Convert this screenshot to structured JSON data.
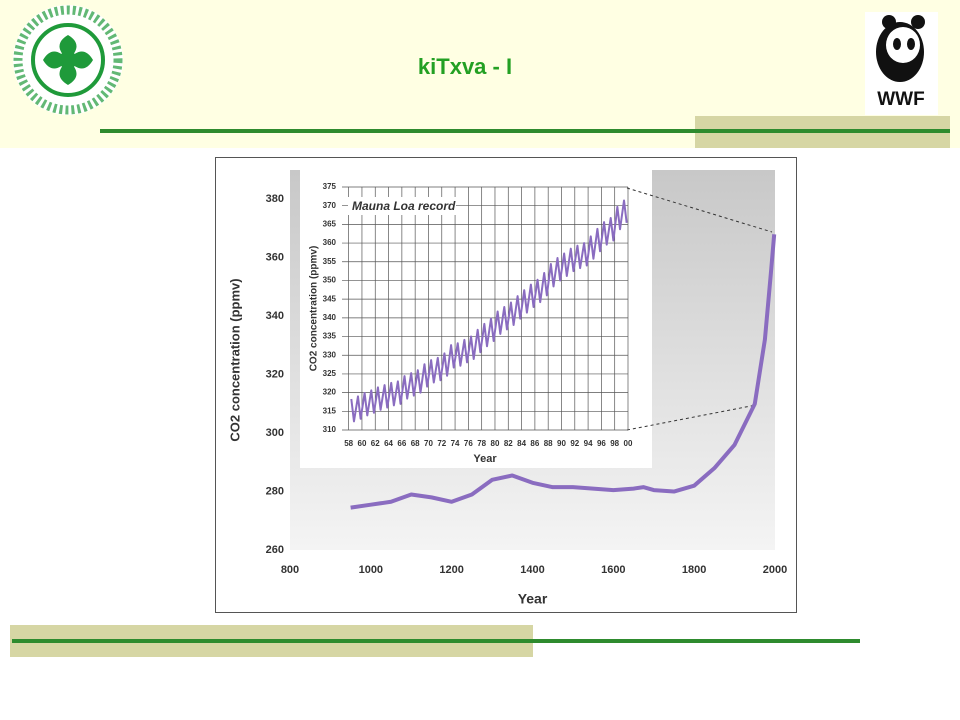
{
  "header": {
    "title": "kiTxva - I",
    "logo_text": "WWF"
  },
  "chart_data": [
    {
      "type": "line",
      "x_label": "Year",
      "y_label": "CO2 concentration (ppmv)",
      "color": "#8a6cc0",
      "grid": false,
      "xlim": [
        800,
        2000
      ],
      "xticks": [
        800,
        1000,
        1200,
        1400,
        1600,
        1800,
        2000
      ],
      "ylim": [
        260,
        390
      ],
      "yticks": [
        260,
        280,
        300,
        320,
        340,
        360,
        380
      ],
      "x": [
        950,
        1000,
        1050,
        1100,
        1150,
        1200,
        1250,
        1300,
        1350,
        1400,
        1450,
        1500,
        1550,
        1600,
        1650,
        1675,
        1700,
        1750,
        1800,
        1850,
        1900,
        1950,
        1975,
        1990,
        1998
      ],
      "values": [
        274.5,
        275.5,
        276.5,
        279,
        278,
        276.5,
        279,
        284,
        285.5,
        283,
        281.5,
        281.5,
        281,
        280.5,
        281,
        281.5,
        280.5,
        280,
        282,
        288,
        296,
        310,
        332,
        355,
        368
      ]
    },
    {
      "type": "line",
      "title": "Mauna Loa record",
      "x_label": "Year",
      "y_label": "CO2 concentration (ppmv)",
      "color": "#8a6cc0",
      "grid": true,
      "xlim": [
        1957,
        2000
      ],
      "xticks": [
        {
          "value": 1958,
          "label": "58"
        },
        {
          "value": 1960,
          "label": "60"
        },
        {
          "value": 1962,
          "label": "62"
        },
        {
          "value": 1964,
          "label": "64"
        },
        {
          "value": 1966,
          "label": "66"
        },
        {
          "value": 1968,
          "label": "68"
        },
        {
          "value": 1970,
          "label": "70"
        },
        {
          "value": 1972,
          "label": "72"
        },
        {
          "value": 1974,
          "label": "74"
        },
        {
          "value": 1976,
          "label": "76"
        },
        {
          "value": 1978,
          "label": "78"
        },
        {
          "value": 1980,
          "label": "80"
        },
        {
          "value": 1982,
          "label": "82"
        },
        {
          "value": 1984,
          "label": "84"
        },
        {
          "value": 1986,
          "label": "86"
        },
        {
          "value": 1988,
          "label": "88"
        },
        {
          "value": 1990,
          "label": "90"
        },
        {
          "value": 1992,
          "label": "92"
        },
        {
          "value": 1994,
          "label": "94"
        },
        {
          "value": 1996,
          "label": "96"
        },
        {
          "value": 1998,
          "label": "98"
        },
        {
          "value": 2000,
          "label": "00"
        }
      ],
      "ylim": [
        310,
        375
      ],
      "yticks": [
        310,
        315,
        320,
        325,
        330,
        335,
        340,
        345,
        350,
        355,
        360,
        365,
        370,
        375
      ],
      "x": [
        1958.4,
        1958.8,
        1959.4,
        1959.8,
        1960.4,
        1960.8,
        1961.4,
        1961.8,
        1962.4,
        1962.8,
        1963.4,
        1963.8,
        1964.4,
        1964.8,
        1965.4,
        1965.8,
        1966.4,
        1966.8,
        1967.4,
        1967.8,
        1968.4,
        1968.8,
        1969.4,
        1969.8,
        1970.4,
        1970.8,
        1971.4,
        1971.8,
        1972.4,
        1972.8,
        1973.4,
        1973.8,
        1974.4,
        1974.8,
        1975.4,
        1975.8,
        1976.4,
        1976.8,
        1977.4,
        1977.8,
        1978.4,
        1978.8,
        1979.4,
        1979.8,
        1980.4,
        1980.8,
        1981.4,
        1981.8,
        1982.4,
        1982.8,
        1983.4,
        1983.8,
        1984.4,
        1984.8,
        1985.4,
        1985.8,
        1986.4,
        1986.8,
        1987.4,
        1987.8,
        1988.4,
        1988.8,
        1989.4,
        1989.8,
        1990.4,
        1990.8,
        1991.4,
        1991.8,
        1992.4,
        1992.8,
        1993.4,
        1993.8,
        1994.4,
        1994.8,
        1995.4,
        1995.8,
        1996.4,
        1996.8,
        1997.4,
        1997.8,
        1998.4,
        1998.8,
        1999.4,
        1999.8
      ],
      "values": [
        318.3,
        312.3,
        319,
        313,
        319.9,
        313.9,
        320.6,
        314.6,
        321.4,
        315.4,
        322,
        316,
        322.6,
        316.6,
        323,
        317,
        324.4,
        318.4,
        325.2,
        319.2,
        326,
        320,
        327.6,
        321.6,
        328.7,
        322.7,
        329.3,
        323.3,
        330.5,
        324.5,
        332.7,
        326.7,
        333.2,
        327.2,
        334.1,
        328.1,
        335,
        329,
        336.8,
        330.8,
        338.4,
        332.4,
        339.8,
        333.8,
        341.7,
        335.7,
        342.9,
        336.9,
        344.1,
        338.1,
        345.8,
        339.8,
        347.4,
        341.4,
        348.9,
        342.9,
        350.2,
        344.2,
        352,
        346,
        354.4,
        348.4,
        356,
        350,
        357.2,
        351.2,
        358.5,
        352.5,
        359.3,
        353.3,
        360,
        354,
        361.8,
        355.8,
        363.8,
        357.8,
        365.6,
        359.6,
        366.7,
        360.7,
        369.7,
        363.7,
        371.4,
        365.4
      ]
    }
  ]
}
